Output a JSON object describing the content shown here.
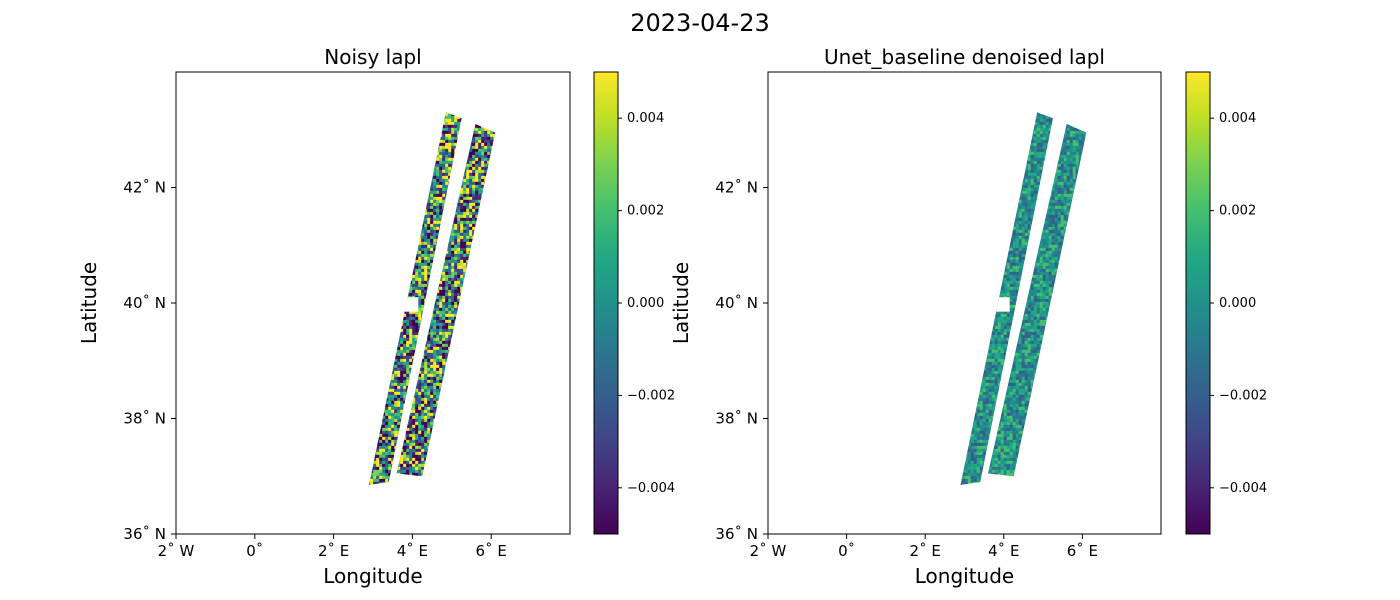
{
  "figure_title": "2023-04-23",
  "chart_data": [
    {
      "type": "heatmap",
      "title": "Noisy lapl",
      "xlabel": "Longitude",
      "ylabel": "Latitude",
      "xlim": [
        -2,
        8
      ],
      "ylim": [
        36,
        44
      ],
      "xticks": [
        -2,
        0,
        2,
        4,
        6
      ],
      "xtick_labels": [
        "2$^\\circ$ W",
        "0$^\\circ$",
        "2$^\\circ$ E",
        "4$^\\circ$ E",
        "6$^\\circ$ E"
      ],
      "yticks": [
        36,
        38,
        40,
        42
      ],
      "ytick_labels": [
        "36$^\\circ$ N",
        "38$^\\circ$ N",
        "40$^\\circ$ N",
        "42$^\\circ$ N"
      ],
      "colormap": "viridis",
      "clim": [
        -0.005,
        0.005
      ],
      "colorbar_ticks": [
        0.004,
        0.002,
        0.0,
        -0.002,
        -0.004
      ],
      "colorbar_tick_labels": [
        "0.004",
        "0.002",
        "0.000",
        "−0.002",
        "−0.004"
      ],
      "swaths": [
        {
          "name": "left swath",
          "corners_lonlat": [
            [
              4.85,
              43.3
            ],
            [
              5.25,
              43.2
            ],
            [
              3.4,
              36.9
            ],
            [
              2.9,
              36.85
            ]
          ]
        },
        {
          "name": "right swath",
          "corners_lonlat": [
            [
              5.6,
              43.1
            ],
            [
              6.1,
              42.95
            ],
            [
              4.25,
              37.0
            ],
            [
              3.6,
              37.05
            ]
          ]
        }
      ],
      "gap": {
        "lon": [
          3.7,
          4.15
        ],
        "lat": [
          39.85,
          40.1
        ]
      },
      "noise_amplitude": 1.0
    },
    {
      "type": "heatmap",
      "title": "Unet_baseline denoised lapl",
      "xlabel": "Longitude",
      "ylabel": "Latitude",
      "xlim": [
        -2,
        8
      ],
      "ylim": [
        36,
        44
      ],
      "xticks": [
        -2,
        0,
        2,
        4,
        6
      ],
      "xtick_labels": [
        "2$^\\circ$ W",
        "0$^\\circ$",
        "2$^\\circ$ E",
        "4$^\\circ$ E",
        "6$^\\circ$ E"
      ],
      "yticks": [
        36,
        38,
        40,
        42
      ],
      "ytick_labels": [
        "36$^\\circ$ N",
        "38$^\\circ$ N",
        "40$^\\circ$ N",
        "42$^\\circ$ N"
      ],
      "colormap": "viridis",
      "clim": [
        -0.005,
        0.005
      ],
      "colorbar_ticks": [
        0.004,
        0.002,
        0.0,
        -0.002,
        -0.004
      ],
      "colorbar_tick_labels": [
        "0.004",
        "0.002",
        "0.000",
        "−0.002",
        "−0.004"
      ],
      "swaths": [
        {
          "name": "left swath",
          "corners_lonlat": [
            [
              4.85,
              43.3
            ],
            [
              5.25,
              43.2
            ],
            [
              3.4,
              36.9
            ],
            [
              2.9,
              36.85
            ]
          ]
        },
        {
          "name": "right swath",
          "corners_lonlat": [
            [
              5.6,
              43.1
            ],
            [
              6.1,
              42.95
            ],
            [
              4.25,
              37.0
            ],
            [
              3.6,
              37.05
            ]
          ]
        }
      ],
      "gap": {
        "lon": [
          3.7,
          4.15
        ],
        "lat": [
          39.85,
          40.1
        ]
      },
      "noise_amplitude": 0.35
    }
  ]
}
